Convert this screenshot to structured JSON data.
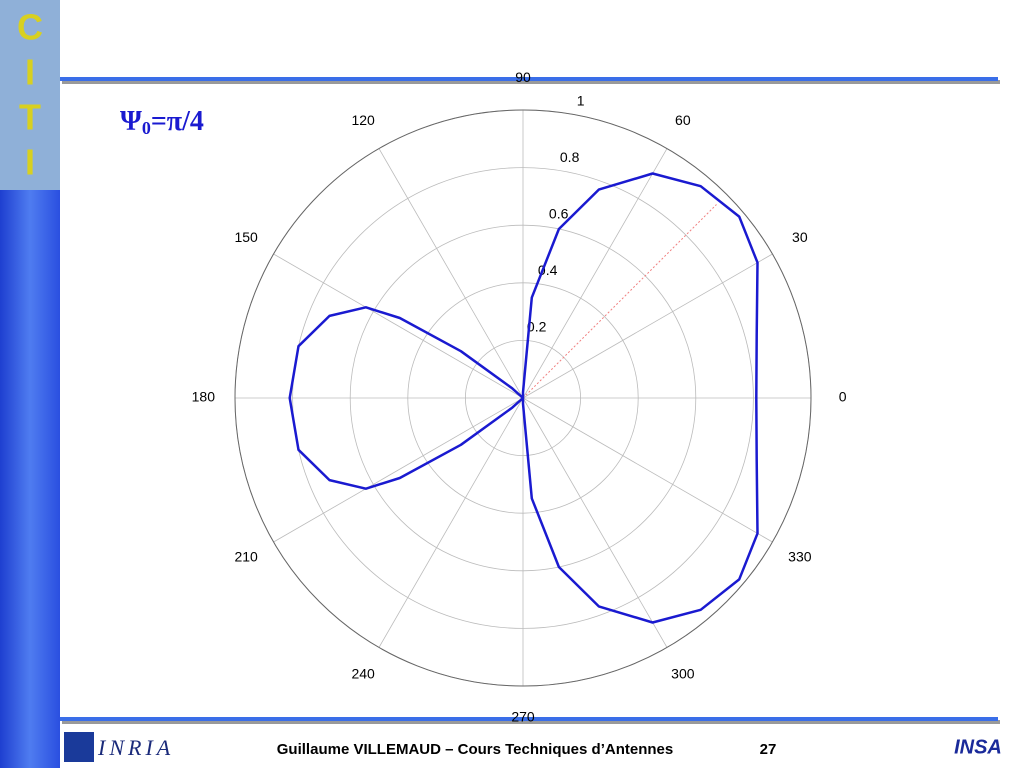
{
  "chart_data": {
    "type": "polar",
    "title": "Ψ",
    "title_sub": "0",
    "title_rest": "=π/4",
    "color": "#1a1ad0",
    "theta": [
      0,
      15,
      30,
      40,
      50,
      60,
      70,
      78,
      85,
      90,
      100,
      120,
      138,
      143,
      147,
      150,
      157,
      167,
      180,
      193,
      203,
      210,
      213,
      217,
      222,
      240,
      260,
      270,
      275,
      282,
      290,
      300,
      310,
      320,
      330,
      345,
      360
    ],
    "values": [
      0.81,
      0.84,
      0.94,
      0.98,
      0.96,
      0.9,
      0.77,
      0.6,
      0.35,
      0.02,
      0,
      0,
      0.05,
      0.27,
      0.51,
      0.63,
      0.73,
      0.8,
      0.81,
      0.8,
      0.73,
      0.63,
      0.51,
      0.27,
      0.05,
      0,
      0,
      0.02,
      0.35,
      0.6,
      0.77,
      0.9,
      0.96,
      0.98,
      0.94,
      0.84,
      0.81
    ],
    "steer_angle": 45,
    "rlim": [
      0,
      1
    ],
    "rticks": [
      0.2,
      0.4,
      0.6,
      0.8,
      1
    ],
    "thetaticks": [
      0,
      30,
      60,
      90,
      120,
      150,
      180,
      210,
      240,
      270,
      300,
      330
    ],
    "grid": true
  },
  "footer": {
    "author": "Guillaume VILLEMAUD – Cours Techniques d’Antennes",
    "page": "27"
  },
  "logos": {
    "left": "INRIA",
    "right": "INSA",
    "side": [
      "C",
      "I",
      "T",
      "I"
    ]
  }
}
